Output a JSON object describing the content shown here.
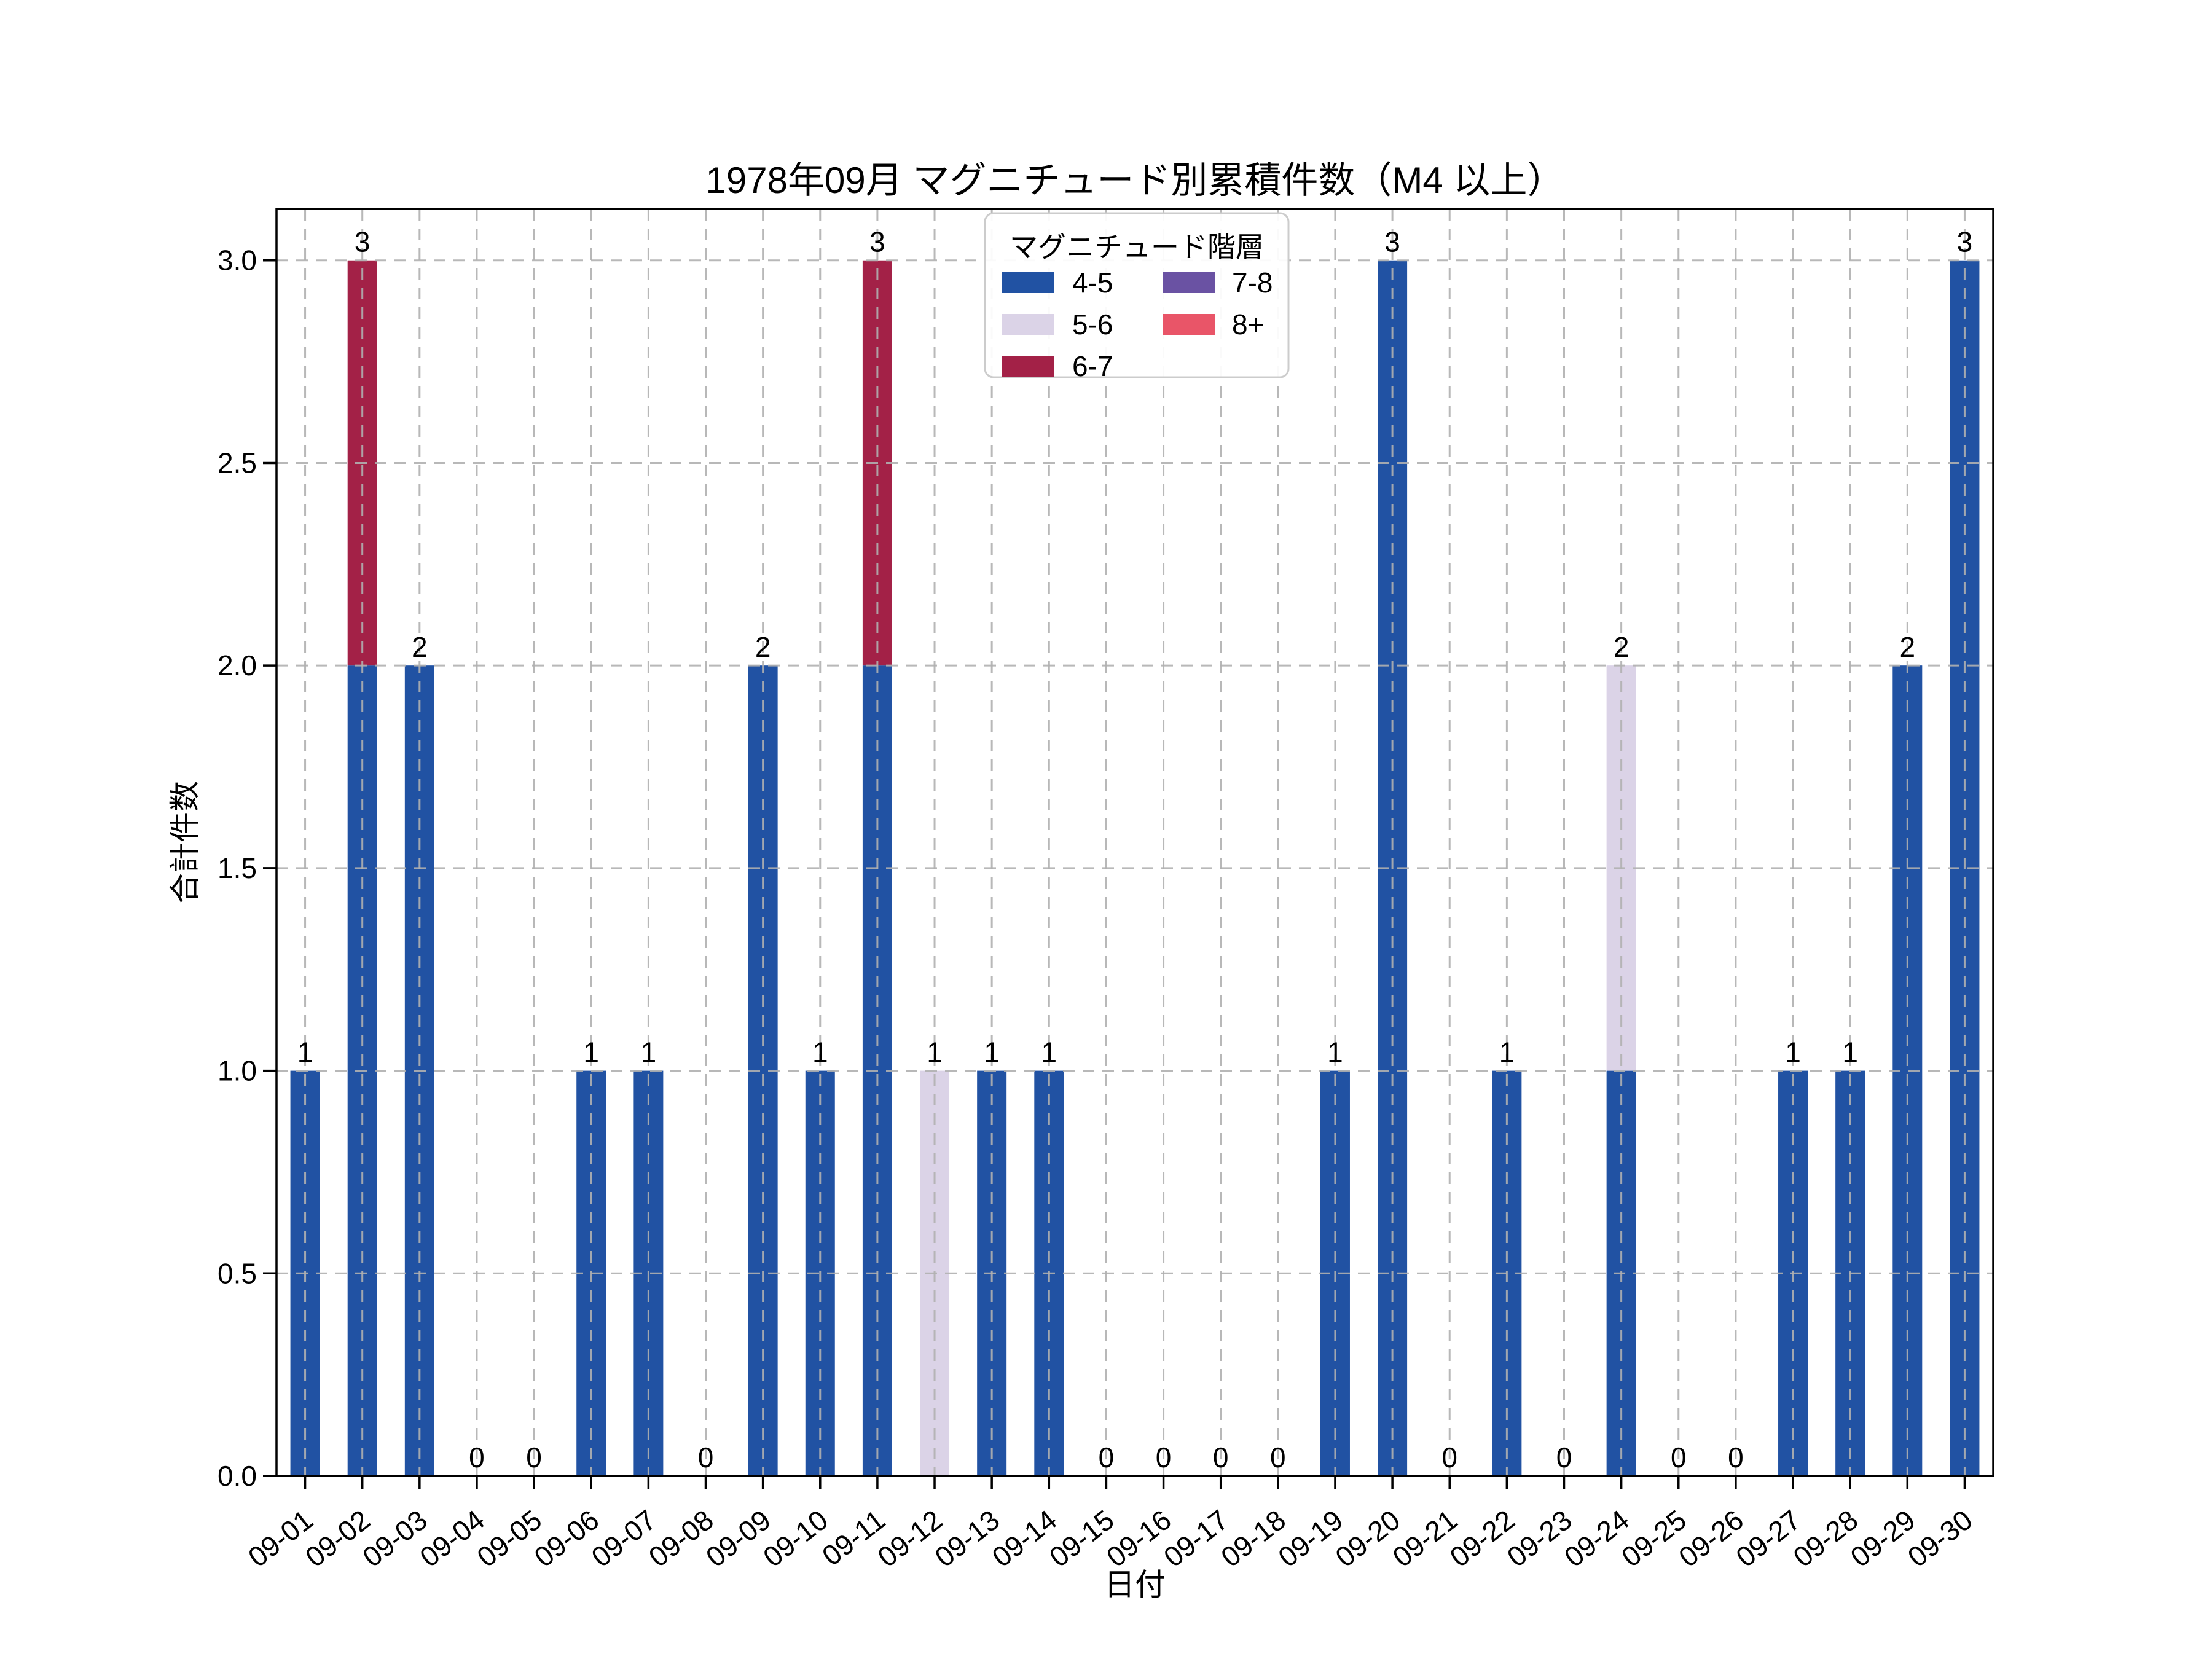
{
  "chart_data": {
    "type": "bar",
    "stacked": true,
    "title": "1978年09月 マグニチュード別累積件数（M4 以上）",
    "xlabel": "日付",
    "ylabel": "合計件数",
    "categories": [
      "09-01",
      "09-02",
      "09-03",
      "09-04",
      "09-05",
      "09-06",
      "09-07",
      "09-08",
      "09-09",
      "09-10",
      "09-11",
      "09-12",
      "09-13",
      "09-14",
      "09-15",
      "09-16",
      "09-17",
      "09-18",
      "09-19",
      "09-20",
      "09-21",
      "09-22",
      "09-23",
      "09-24",
      "09-25",
      "09-26",
      "09-27",
      "09-28",
      "09-29",
      "09-30"
    ],
    "series": [
      {
        "name": "4-5",
        "color": "#2152a3",
        "values": [
          1,
          2,
          2,
          0,
          0,
          1,
          1,
          0,
          2,
          1,
          2,
          0,
          1,
          1,
          0,
          0,
          0,
          0,
          1,
          3,
          0,
          1,
          0,
          1,
          0,
          0,
          1,
          1,
          2,
          3
        ]
      },
      {
        "name": "5-6",
        "color": "#dbd3e7",
        "values": [
          0,
          0,
          0,
          0,
          0,
          0,
          0,
          0,
          0,
          0,
          0,
          1,
          0,
          0,
          0,
          0,
          0,
          0,
          0,
          0,
          0,
          0,
          0,
          1,
          0,
          0,
          0,
          0,
          0,
          0
        ]
      },
      {
        "name": "6-7",
        "color": "#a32147",
        "values": [
          0,
          1,
          0,
          0,
          0,
          0,
          0,
          0,
          0,
          0,
          1,
          0,
          0,
          0,
          0,
          0,
          0,
          0,
          0,
          0,
          0,
          0,
          0,
          0,
          0,
          0,
          0,
          0,
          0,
          0
        ]
      },
      {
        "name": "7-8",
        "color": "#6a52a3",
        "values": [
          0,
          0,
          0,
          0,
          0,
          0,
          0,
          0,
          0,
          0,
          0,
          0,
          0,
          0,
          0,
          0,
          0,
          0,
          0,
          0,
          0,
          0,
          0,
          0,
          0,
          0,
          0,
          0,
          0,
          0
        ]
      },
      {
        "name": "8+",
        "color": "#e95568",
        "values": [
          0,
          0,
          0,
          0,
          0,
          0,
          0,
          0,
          0,
          0,
          0,
          0,
          0,
          0,
          0,
          0,
          0,
          0,
          0,
          0,
          0,
          0,
          0,
          0,
          0,
          0,
          0,
          0,
          0,
          0
        ]
      }
    ],
    "bar_labels": [
      1,
      3,
      2,
      0,
      0,
      1,
      1,
      0,
      2,
      1,
      3,
      1,
      1,
      1,
      0,
      0,
      0,
      0,
      1,
      3,
      0,
      1,
      0,
      2,
      0,
      0,
      1,
      1,
      2,
      3
    ],
    "yticks": [
      0.0,
      0.5,
      1.0,
      1.5,
      2.0,
      2.5,
      3.0
    ],
    "ytick_labels": [
      "0.0",
      "0.5",
      "1.0",
      "1.5",
      "2.0",
      "2.5",
      "3.0"
    ],
    "ylim": [
      0,
      3.127
    ],
    "grid": true,
    "grid_color": "#b0b0b0",
    "legend": {
      "title": "マグニチュード階層",
      "position": "upper center",
      "entries": [
        "4-5",
        "5-6",
        "6-7",
        "7-8",
        "8+"
      ]
    }
  }
}
